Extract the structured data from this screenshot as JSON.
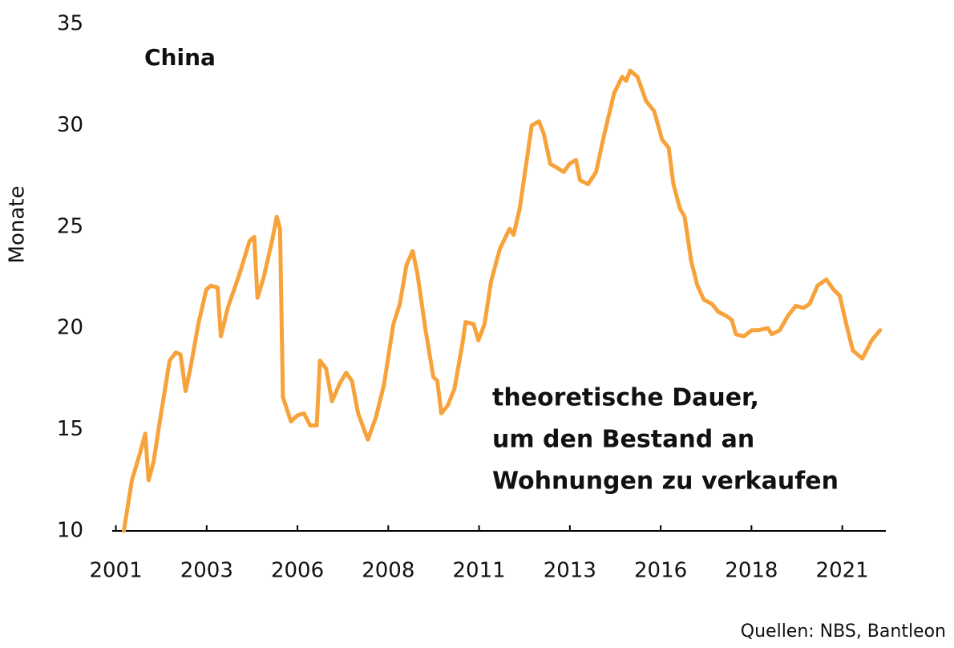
{
  "chart_data": {
    "type": "line",
    "title": "China",
    "ylabel": "Monate",
    "annotation": [
      "theoretische Dauer,",
      "um den Bestand an",
      "Wohnungen zu verkaufen"
    ],
    "source": "Quellen: NBS, Bantleon",
    "color": "#f7a23a",
    "xlim": [
      2000.9,
      2022.2
    ],
    "ylim": [
      10,
      35
    ],
    "yticks": [
      10,
      15,
      20,
      25,
      30,
      35
    ],
    "xticks": [
      2001,
      {
        "value": 2003.5,
        "label": "2003"
      },
      2006,
      {
        "value": 2008.5,
        "label": "2008"
      },
      2011,
      {
        "value": 2013.5,
        "label": "2013"
      },
      2016,
      {
        "value": 2018.5,
        "label": "2018"
      },
      2021
    ],
    "x": [
      2001.22,
      2001.44,
      2001.66,
      2001.81,
      2001.9,
      2002.04,
      2002.21,
      2002.48,
      2002.65,
      2002.78,
      2002.92,
      2003.05,
      2003.27,
      2003.49,
      2003.62,
      2003.8,
      2003.89,
      2004.08,
      2004.41,
      2004.68,
      2004.81,
      2004.9,
      2005.07,
      2005.3,
      2005.43,
      2005.52,
      2005.6,
      2005.82,
      2006.0,
      2006.18,
      2006.35,
      2006.53,
      2006.62,
      2006.79,
      2006.95,
      2007.17,
      2007.34,
      2007.5,
      2007.67,
      2007.94,
      2008.16,
      2008.38,
      2008.64,
      2008.82,
      2009.0,
      2009.17,
      2009.3,
      2009.52,
      2009.74,
      2009.85,
      2009.96,
      2010.14,
      2010.32,
      2010.54,
      2010.63,
      2010.85,
      2010.98,
      2011.15,
      2011.33,
      2011.57,
      2011.84,
      2011.95,
      2012.12,
      2012.45,
      2012.65,
      2012.78,
      2012.96,
      2013.16,
      2013.33,
      2013.49,
      2013.67,
      2013.78,
      2014.0,
      2014.22,
      2014.44,
      2014.72,
      2014.94,
      2015.05,
      2015.16,
      2015.36,
      2015.6,
      2015.82,
      2016.04,
      2016.22,
      2016.35,
      2016.53,
      2016.66,
      2016.84,
      2017.01,
      2017.19,
      2017.41,
      2017.59,
      2017.81,
      2017.96,
      2018.07,
      2018.29,
      2018.51,
      2018.69,
      2018.95,
      2019.06,
      2019.28,
      2019.5,
      2019.72,
      2019.94,
      2020.1,
      2020.32,
      2020.56,
      2020.76,
      2020.93,
      2021.11,
      2021.29,
      2021.55,
      2021.81,
      2022.04
    ],
    "values": [
      10.0,
      12.5,
      13.8,
      14.8,
      12.5,
      13.4,
      15.4,
      18.4,
      18.8,
      18.7,
      16.9,
      18.0,
      20.2,
      21.9,
      22.1,
      22.0,
      19.6,
      21.0,
      22.7,
      24.3,
      24.5,
      21.5,
      22.5,
      24.3,
      25.5,
      24.9,
      16.6,
      15.4,
      15.7,
      15.8,
      15.2,
      15.2,
      18.4,
      18.0,
      16.4,
      17.3,
      17.8,
      17.4,
      15.8,
      14.5,
      15.6,
      17.2,
      20.2,
      21.2,
      23.1,
      23.8,
      22.7,
      20.0,
      17.6,
      17.4,
      15.8,
      16.2,
      17.0,
      19.2,
      20.3,
      20.2,
      19.4,
      20.2,
      22.3,
      23.9,
      24.9,
      24.6,
      25.9,
      30.0,
      30.2,
      29.6,
      28.1,
      27.9,
      27.7,
      28.1,
      28.3,
      27.3,
      27.1,
      27.7,
      29.5,
      31.6,
      32.4,
      32.2,
      32.7,
      32.4,
      31.2,
      30.7,
      29.3,
      28.9,
      27.1,
      25.9,
      25.5,
      23.3,
      22.1,
      21.4,
      21.2,
      20.8,
      20.6,
      20.4,
      19.7,
      19.6,
      19.9,
      19.9,
      20.0,
      19.7,
      19.9,
      20.6,
      21.1,
      21.0,
      21.2,
      22.1,
      22.4,
      21.9,
      21.6,
      20.2,
      18.9,
      18.5,
      19.4,
      19.9
    ]
  }
}
